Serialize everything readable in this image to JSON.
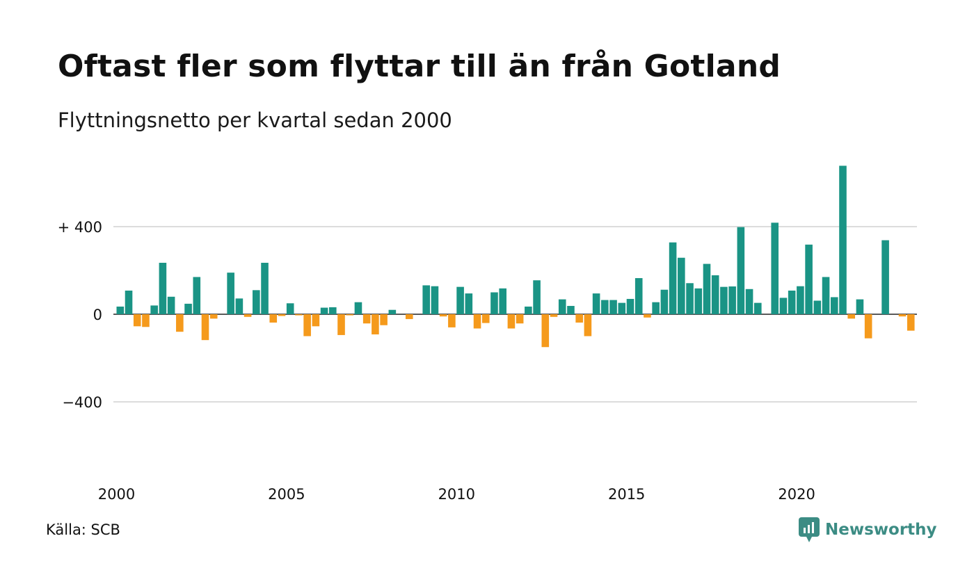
{
  "title": "Oftast fler som flyttar till än från Gotland",
  "subtitle": "Flyttningsnetto per kvartal sedan 2000",
  "source": "Källa: SCB",
  "brand": {
    "name": "Newsworthy",
    "icon": "newsworthy-logo-icon"
  },
  "colors": {
    "positive": "#1a9485",
    "negative": "#f59a1c",
    "grid": "#dcdcdc",
    "baseline": "#222222"
  },
  "chart_data": {
    "type": "bar",
    "title": "Oftast fler som flyttar till än från Gotland",
    "subtitle": "Flyttningsnetto per kvartal sedan 2000",
    "xlabel": "",
    "ylabel": "",
    "x_start": "2000 Q1",
    "frequency": "quarterly",
    "ylim": [
      -700,
      700
    ],
    "yticks": [
      400,
      0,
      -400
    ],
    "ytick_labels": [
      "+ 400",
      "0",
      "−400"
    ],
    "xticks": [
      "2000",
      "2005",
      "2010",
      "2015",
      "2020"
    ],
    "grid": true,
    "legend": "none",
    "values": [
      35,
      108,
      -55,
      -58,
      40,
      235,
      80,
      -80,
      48,
      170,
      -118,
      -20,
      0,
      190,
      72,
      -12,
      110,
      235,
      -38,
      -8,
      50,
      -5,
      -100,
      -55,
      30,
      32,
      -95,
      -5,
      55,
      -42,
      -92,
      -50,
      20,
      0,
      -22,
      0,
      132,
      128,
      -10,
      -60,
      125,
      95,
      -65,
      -40,
      100,
      118,
      -65,
      -42,
      35,
      155,
      -150,
      -12,
      68,
      38,
      -38,
      -100,
      95,
      65,
      65,
      52,
      70,
      165,
      -15,
      55,
      112,
      328,
      258,
      142,
      118,
      230,
      178,
      125,
      127,
      398,
      115,
      52,
      0,
      418,
      75,
      108,
      128,
      318,
      62,
      170,
      78,
      678,
      -20,
      68,
      -110,
      0,
      338,
      0,
      -10,
      -75
    ]
  }
}
